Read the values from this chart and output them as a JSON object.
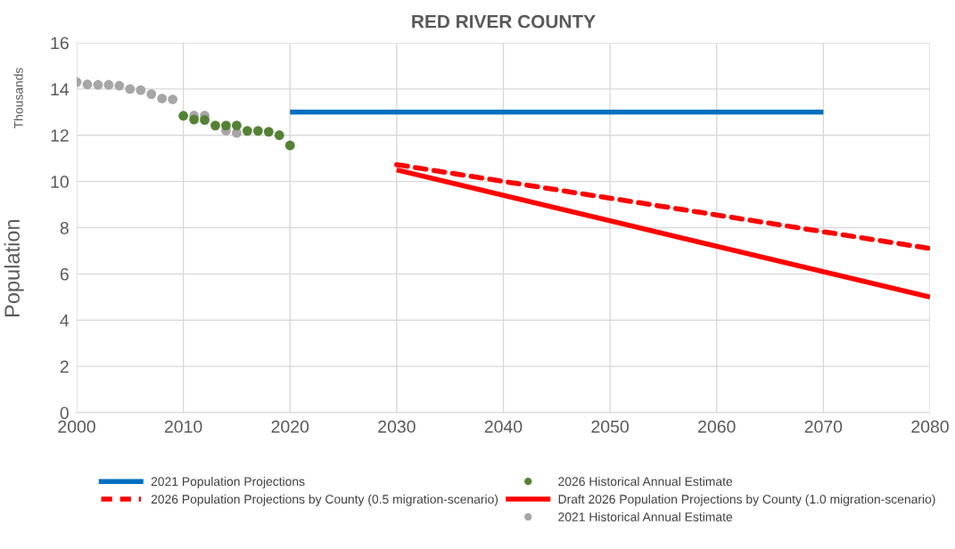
{
  "chart_data": {
    "type": "scatter",
    "title": "RED RIVER COUNTY",
    "ylabel": "Population",
    "annotations": [
      "Thousands"
    ],
    "xlim": [
      2000,
      2080
    ],
    "xticks": [
      2000,
      2010,
      2020,
      2030,
      2040,
      2050,
      2060,
      2070,
      2080
    ],
    "ylim": [
      0,
      16
    ],
    "yticks": [
      0,
      2,
      4,
      6,
      8,
      10,
      12,
      14,
      16
    ],
    "grid": true,
    "legend": "bottom",
    "series": [
      {
        "name": "2021 Historical Annual Estimate",
        "marker": "circle",
        "color": "#a6a6a6",
        "x": [
          2000,
          2001,
          2002,
          2003,
          2004,
          2005,
          2006,
          2007,
          2008,
          2009,
          2011,
          2012,
          2014,
          2015
        ],
        "values": [
          14.3,
          14.2,
          14.18,
          14.18,
          14.14,
          14.0,
          13.95,
          13.78,
          13.59,
          13.55,
          12.85,
          12.85,
          12.2,
          12.1
        ]
      },
      {
        "name": "2026 Historical Annual Estimate",
        "marker": "circle",
        "color": "#548235",
        "x": [
          2010,
          2011,
          2012,
          2013,
          2014,
          2015,
          2016,
          2017,
          2018,
          2019,
          2020
        ],
        "values": [
          12.84,
          12.68,
          12.66,
          12.42,
          12.42,
          12.42,
          12.19,
          12.19,
          12.15,
          12.0,
          11.56
        ]
      },
      {
        "name": "2021 Population Projections",
        "type": "line",
        "color": "#0070c0",
        "line_style": "solid",
        "x": [
          2020,
          2070
        ],
        "values": [
          13.0,
          13.0
        ]
      },
      {
        "name": "Draft 2026 Population Projections by County (1.0 migration-scenario)",
        "type": "line",
        "color": "#ff0000",
        "line_style": "solid",
        "x": [
          2030,
          2080
        ],
        "values": [
          10.5,
          5.0
        ]
      },
      {
        "name": "2026 Population Projections by County (0.5 migration-scenario)",
        "type": "line",
        "color": "#ff0000",
        "line_style": "dashed",
        "x": [
          2030,
          2080
        ],
        "values": [
          10.73,
          7.1
        ]
      }
    ]
  }
}
